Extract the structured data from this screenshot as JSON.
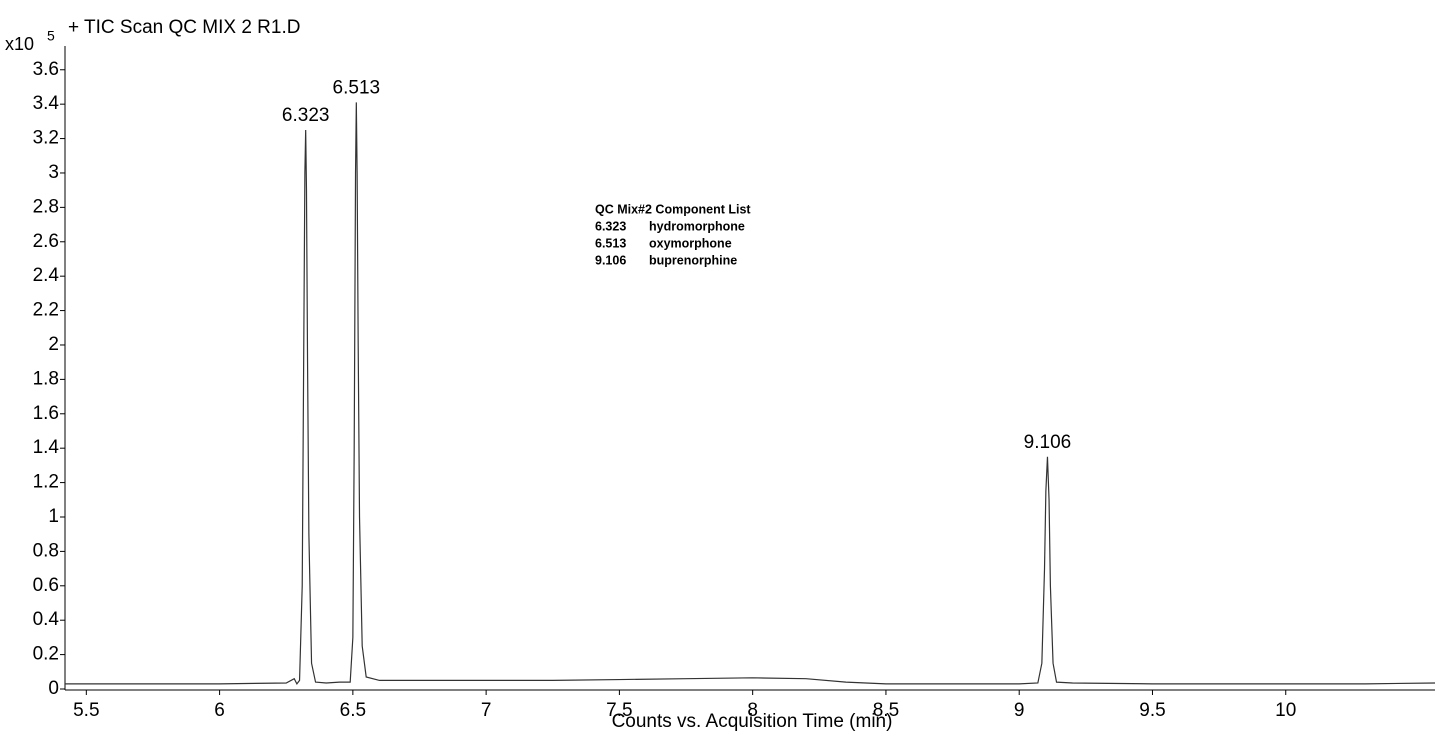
{
  "chart_data": {
    "type": "line",
    "title": "+ TIC Scan QC MIX 2 R1.D",
    "y_multiplier": "x10",
    "y_exponent": "5",
    "x_label": "Counts vs. Acquisition Time (min)",
    "color": "#333333",
    "xlim": [
      5.42,
      10.56
    ],
    "ylim": [
      0,
      3.68
    ],
    "xticks": [
      5.5,
      6,
      6.5,
      7,
      7.5,
      8,
      8.5,
      9,
      9.5,
      10
    ],
    "yticks": [
      0,
      0.2,
      0.4,
      0.6,
      0.8,
      1,
      1.2,
      1.4,
      1.6,
      1.8,
      2,
      2.2,
      2.4,
      2.6,
      2.8,
      3,
      3.2,
      3.4,
      3.6
    ],
    "x": [
      5.42,
      5.75,
      6.0,
      6.25,
      6.28,
      6.29,
      6.3,
      6.31,
      6.315,
      6.32,
      6.323,
      6.326,
      6.33,
      6.335,
      6.345,
      6.36,
      6.4,
      6.45,
      6.49,
      6.5,
      6.505,
      6.51,
      6.513,
      6.516,
      6.52,
      6.525,
      6.535,
      6.55,
      6.6,
      6.8,
      7.0,
      7.25,
      7.5,
      7.75,
      8.0,
      8.2,
      8.35,
      8.5,
      8.75,
      9.0,
      9.07,
      9.085,
      9.095,
      9.1,
      9.106,
      9.112,
      9.117,
      9.127,
      9.14,
      9.2,
      9.5,
      9.75,
      10.0,
      10.3,
      10.56
    ],
    "y": [
      0.03,
      0.03,
      0.03,
      0.035,
      0.06,
      0.03,
      0.05,
      0.6,
      1.8,
      3.0,
      3.25,
      2.9,
      1.9,
      0.9,
      0.15,
      0.04,
      0.035,
      0.04,
      0.04,
      0.3,
      1.4,
      3.0,
      3.41,
      3.0,
      2.0,
      1.0,
      0.25,
      0.07,
      0.05,
      0.05,
      0.05,
      0.05,
      0.055,
      0.06,
      0.065,
      0.06,
      0.04,
      0.03,
      0.03,
      0.03,
      0.035,
      0.15,
      0.7,
      1.15,
      1.35,
      1.1,
      0.6,
      0.15,
      0.04,
      0.035,
      0.03,
      0.03,
      0.03,
      0.03,
      0.035
    ],
    "peaks": [
      {
        "time": 6.323,
        "height": 3.25
      },
      {
        "time": 6.513,
        "height": 3.41
      },
      {
        "time": 9.106,
        "height": 1.35
      }
    ],
    "component_list": {
      "title": "QC Mix#2   Component List",
      "rows": [
        [
          "6.323",
          "hydromorphone"
        ],
        [
          "6.513",
          "oxymorphone"
        ],
        [
          "9.106",
          "buprenorphine"
        ]
      ]
    }
  }
}
